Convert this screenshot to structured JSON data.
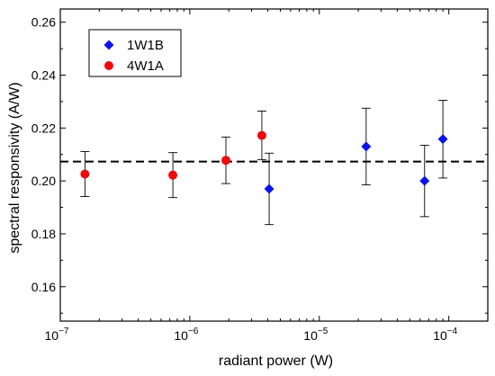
{
  "chart_data": {
    "type": "scatter",
    "xlabel": "radiant power (W)",
    "ylabel": "spectral responsivity (A/W)",
    "xscale": "log",
    "xlim": [
      1e-07,
      0.0002
    ],
    "ylim": [
      0.147,
      0.265
    ],
    "x_ticks": [
      {
        "value": 1e-07,
        "base": "10",
        "exp": "−7"
      },
      {
        "value": 1e-06,
        "base": "10",
        "exp": "−6"
      },
      {
        "value": 1e-05,
        "base": "10",
        "exp": "−5"
      },
      {
        "value": 0.0001,
        "base": "10",
        "exp": "−4"
      }
    ],
    "y_ticks": [
      {
        "value": 0.16,
        "label": "0.16"
      },
      {
        "value": 0.18,
        "label": "0.18"
      },
      {
        "value": 0.2,
        "label": "0.20"
      },
      {
        "value": 0.22,
        "label": "0.22"
      },
      {
        "value": 0.24,
        "label": "0.24"
      },
      {
        "value": 0.26,
        "label": "0.26"
      }
    ],
    "reference_line": {
      "y": 0.2073,
      "style": "dashed",
      "color": "#000000"
    },
    "legend_position": "top-left",
    "series": [
      {
        "name": "1W1B",
        "marker": "diamond",
        "color": "#0a14e6",
        "points": [
          {
            "x": 4.1e-06,
            "y": 0.197,
            "err": 0.0135
          },
          {
            "x": 2.3e-05,
            "y": 0.213,
            "err": 0.0145
          },
          {
            "x": 6.5e-05,
            "y": 0.2,
            "err": 0.0135
          },
          {
            "x": 9e-05,
            "y": 0.2158,
            "err": 0.0147
          }
        ]
      },
      {
        "name": "4W1A",
        "marker": "circle",
        "color": "#ee0a0a",
        "points": [
          {
            "x": 1.55e-07,
            "y": 0.2026,
            "err": 0.0085
          },
          {
            "x": 7.4e-07,
            "y": 0.2022,
            "err": 0.0085
          },
          {
            "x": 1.9e-06,
            "y": 0.2078,
            "err": 0.0088
          },
          {
            "x": 3.6e-06,
            "y": 0.2172,
            "err": 0.0092
          }
        ]
      }
    ]
  }
}
